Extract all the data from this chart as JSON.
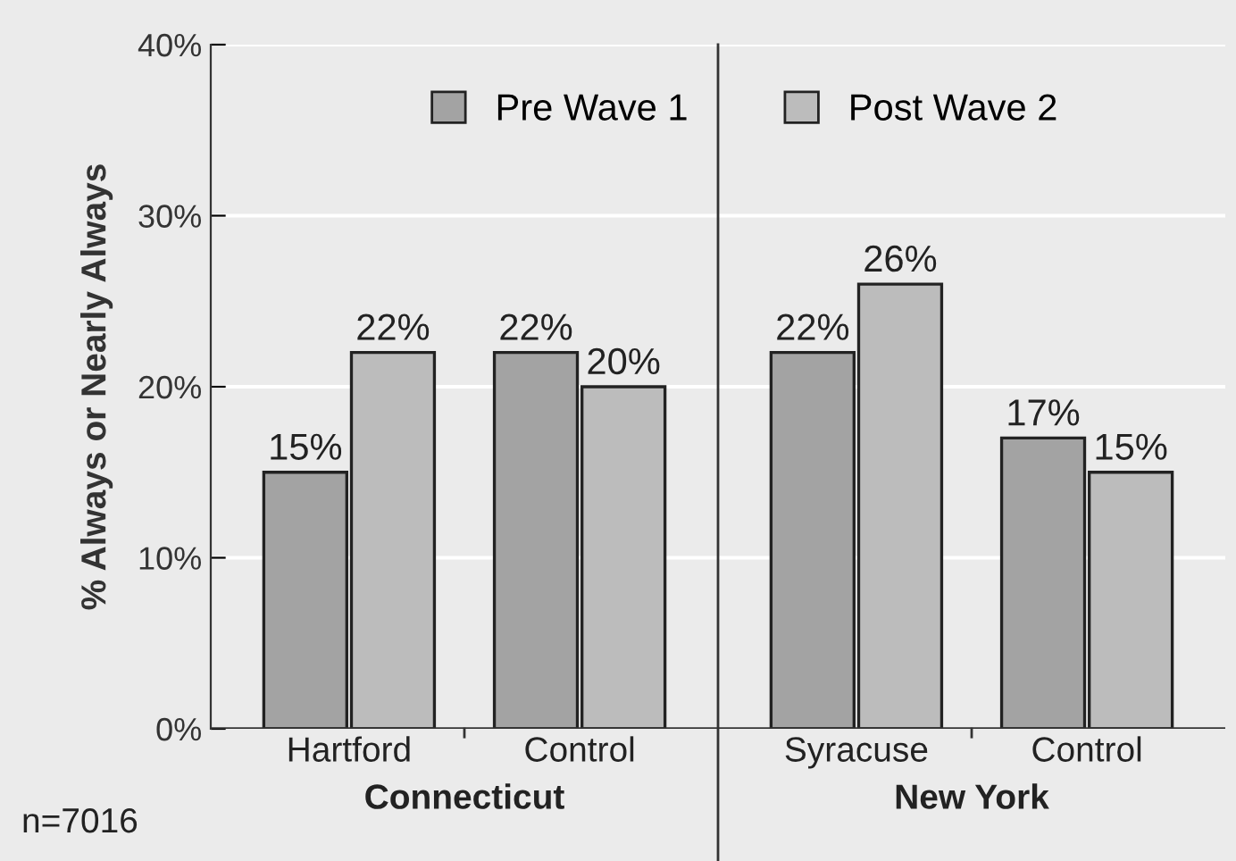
{
  "chart_data": [
    {
      "type": "bar",
      "ylabel": "% Always or Nearly Always",
      "xlabel": "Connecticut",
      "categories": [
        "Hartford",
        "Control"
      ],
      "series": [
        {
          "name": "Pre Wave 1",
          "color": "#a3a3a3",
          "values": [
            15,
            22
          ]
        },
        {
          "name": "Post Wave 2",
          "color": "#bcbcbc",
          "values": [
            22,
            20
          ]
        }
      ],
      "value_labels": [
        [
          "15%",
          "22%"
        ],
        [
          "22%",
          "20%"
        ]
      ],
      "ylim": [
        0,
        40
      ],
      "yticks": [
        {
          "value": 0,
          "label": "0%"
        },
        {
          "value": 10,
          "label": "10%"
        },
        {
          "value": 20,
          "label": "20%"
        },
        {
          "value": 30,
          "label": "30%"
        },
        {
          "value": 40,
          "label": "40%"
        }
      ],
      "grid": "y",
      "legend": "top",
      "annotations": [
        "n=7016"
      ]
    },
    {
      "type": "bar",
      "xlabel": "New York",
      "categories": [
        "Syracuse",
        "Control"
      ],
      "series": [
        {
          "color": "#a3a3a3",
          "values": [
            22,
            17
          ]
        },
        {
          "color": "#bcbcbc",
          "values": [
            26,
            15
          ]
        }
      ],
      "value_labels": [
        [
          "22%",
          "17%"
        ],
        [
          "26%",
          "15%"
        ]
      ],
      "ylim": [
        0,
        40
      ],
      "yticks": [
        0,
        10,
        20,
        30,
        40
      ],
      "grid": "y",
      "tick_labels": "x"
    }
  ]
}
